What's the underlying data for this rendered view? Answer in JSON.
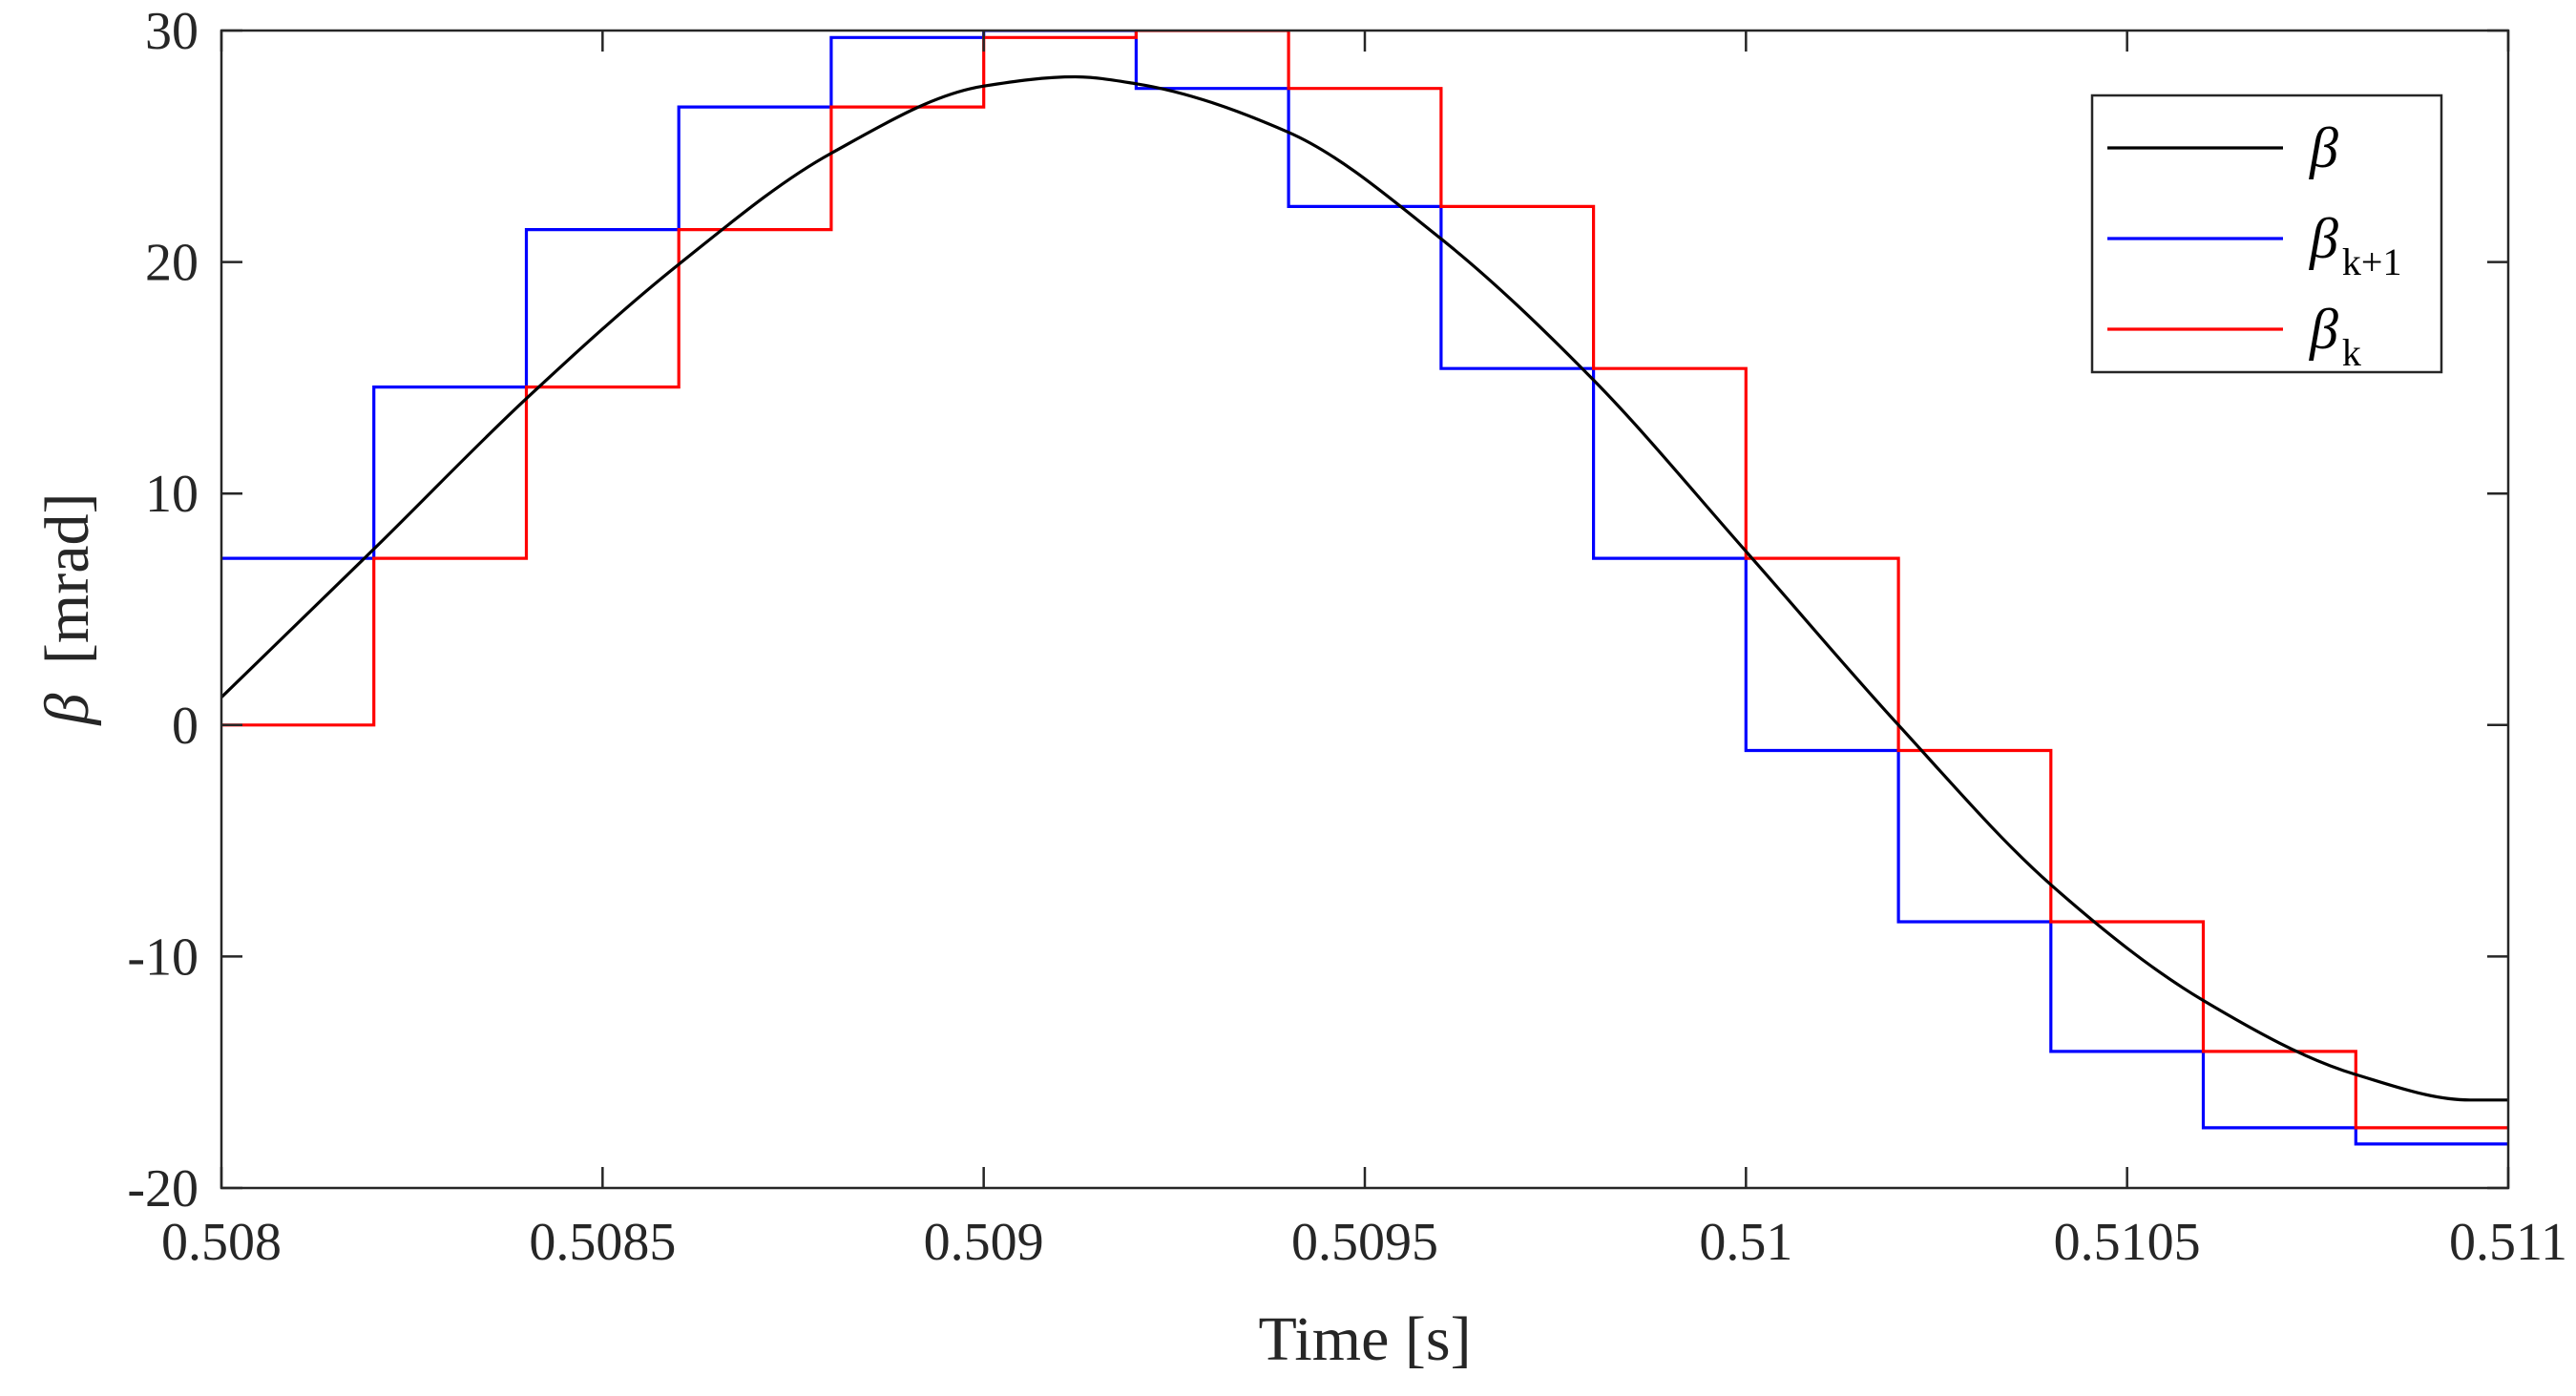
{
  "chart_data": {
    "type": "line",
    "title": "",
    "xlabel": "Time [s]",
    "ylabel": {
      "symbol": "β",
      "unit": "[mrad]"
    },
    "xlim": [
      0.508,
      0.511
    ],
    "ylim": [
      -20,
      30
    ],
    "xticks": [
      0.508,
      0.5085,
      0.509,
      0.5095,
      0.51,
      0.5105,
      0.511
    ],
    "xtick_labels": [
      "0.508",
      "0.5085",
      "0.509",
      "0.5095",
      "0.51",
      "0.5105",
      "0.511"
    ],
    "yticks": [
      -20,
      -10,
      0,
      10,
      20,
      30
    ],
    "ytick_labels": [
      "-20",
      "-10",
      "0",
      "10",
      "20",
      "30"
    ],
    "grid": false,
    "legend_position": "top-right",
    "series": [
      {
        "name": "β",
        "legend": {
          "symbol": "β",
          "subscript": ""
        },
        "color": "#000000",
        "style": "smooth",
        "x": [
          0.508,
          0.5082,
          0.5084,
          0.5086,
          0.5088,
          0.509,
          0.50912,
          0.5092,
          0.5094,
          0.5096,
          0.5098,
          0.51,
          0.5102,
          0.5104,
          0.5106,
          0.5108,
          0.51095,
          0.511
        ],
        "y": [
          1.2,
          7.6,
          14.1,
          19.9,
          24.7,
          27.6,
          28.0,
          27.7,
          25.6,
          21.0,
          14.9,
          7.5,
          0.0,
          -6.9,
          -11.9,
          -15.1,
          -16.2,
          -16.2
        ]
      },
      {
        "name": "β_k+1",
        "legend": {
          "symbol": "β",
          "subscript": "k+1"
        },
        "color": "#0000ff",
        "style": "step",
        "x": [
          0.508,
          0.5082,
          0.5084,
          0.5086,
          0.5088,
          0.509,
          0.5092,
          0.5094,
          0.5096,
          0.5098,
          0.51,
          0.5102,
          0.5104,
          0.5106,
          0.5108,
          0.511
        ],
        "y": [
          7.2,
          14.6,
          21.4,
          26.7,
          29.7,
          30.0,
          27.5,
          22.4,
          15.4,
          7.2,
          -1.1,
          -8.5,
          -14.1,
          -17.4,
          -18.1,
          -18.1
        ]
      },
      {
        "name": "β_k",
        "legend": {
          "symbol": "β",
          "subscript": "k"
        },
        "color": "#ff0000",
        "style": "step",
        "x": [
          0.508,
          0.5082,
          0.5084,
          0.5086,
          0.5088,
          0.509,
          0.5092,
          0.5094,
          0.5096,
          0.5098,
          0.51,
          0.5102,
          0.5104,
          0.5106,
          0.5108,
          0.511
        ],
        "y": [
          0.0,
          7.2,
          14.6,
          21.4,
          26.7,
          29.7,
          30.0,
          27.5,
          22.4,
          15.4,
          7.2,
          -1.1,
          -8.5,
          -14.1,
          -17.4,
          -17.4
        ]
      }
    ]
  }
}
